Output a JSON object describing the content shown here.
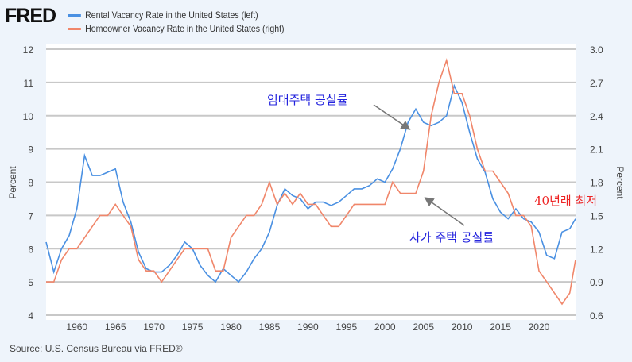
{
  "header": {
    "logo": "FRED"
  },
  "source": "Source: U.S. Census Bureau via FRED®",
  "chart_data": {
    "type": "line",
    "ylabel_left": "Percent",
    "ylabel_right": "Percent",
    "ylim_left": [
      4,
      12
    ],
    "ylim_right": [
      0.6,
      3.0
    ],
    "xlim": [
      1956,
      2024.75
    ],
    "x_ticks": [
      "1960",
      "1965",
      "1970",
      "1975",
      "1980",
      "1985",
      "1990",
      "1995",
      "2000",
      "2005",
      "2010",
      "2015",
      "2020"
    ],
    "y_ticks_left": [
      "4",
      "5",
      "6",
      "7",
      "8",
      "9",
      "10",
      "11",
      "12"
    ],
    "y_ticks_right": [
      "0.6",
      "0.9",
      "1.2",
      "1.5",
      "1.8",
      "2.1",
      "2.4",
      "2.7",
      "3.0"
    ],
    "grid": true,
    "legend": "top-left",
    "series": [
      {
        "name": "Rental Vacancy Rate in the United States (left)",
        "axis": "left",
        "color": "#4a90e2",
        "x": [
          1956,
          1957,
          1958,
          1959,
          1960,
          1961,
          1962,
          1963,
          1964,
          1965,
          1966,
          1967,
          1968,
          1969,
          1970,
          1971,
          1972,
          1973,
          1974,
          1975,
          1976,
          1977,
          1978,
          1979,
          1980,
          1981,
          1982,
          1983,
          1984,
          1985,
          1986,
          1987,
          1988,
          1989,
          1990,
          1991,
          1992,
          1993,
          1994,
          1995,
          1996,
          1997,
          1998,
          1999,
          2000,
          2001,
          2002,
          2003,
          2004,
          2005,
          2006,
          2007,
          2008,
          2009,
          2010,
          2011,
          2012,
          2013,
          2014,
          2015,
          2016,
          2017,
          2018,
          2019,
          2020,
          2021,
          2022,
          2023,
          2024,
          2024.75
        ],
        "values": [
          6.2,
          5.3,
          6.0,
          6.4,
          7.2,
          8.8,
          8.2,
          8.2,
          8.3,
          8.4,
          7.4,
          6.8,
          5.9,
          5.4,
          5.3,
          5.3,
          5.5,
          5.8,
          6.2,
          6.0,
          5.5,
          5.2,
          5.0,
          5.4,
          5.2,
          5.0,
          5.3,
          5.7,
          6.0,
          6.5,
          7.3,
          7.8,
          7.6,
          7.5,
          7.2,
          7.4,
          7.4,
          7.3,
          7.4,
          7.6,
          7.8,
          7.8,
          7.9,
          8.1,
          8.0,
          8.4,
          9.0,
          9.8,
          10.2,
          9.8,
          9.7,
          9.8,
          10.0,
          10.9,
          10.4,
          9.5,
          8.7,
          8.3,
          7.5,
          7.1,
          6.9,
          7.2,
          6.9,
          6.8,
          6.5,
          5.8,
          5.7,
          6.5,
          6.6,
          6.9
        ]
      },
      {
        "name": "Homeowner Vacancy Rate in the United States (right)",
        "axis": "right",
        "color": "#f0866a",
        "x": [
          1956,
          1957,
          1958,
          1959,
          1960,
          1961,
          1962,
          1963,
          1964,
          1965,
          1966,
          1967,
          1968,
          1969,
          1970,
          1971,
          1972,
          1973,
          1974,
          1975,
          1976,
          1977,
          1978,
          1979,
          1980,
          1981,
          1982,
          1983,
          1984,
          1985,
          1986,
          1987,
          1988,
          1989,
          1990,
          1991,
          1992,
          1993,
          1994,
          1995,
          1996,
          1997,
          1998,
          1999,
          2000,
          2001,
          2002,
          2003,
          2004,
          2005,
          2006,
          2007,
          2008,
          2009,
          2010,
          2011,
          2012,
          2013,
          2014,
          2015,
          2016,
          2017,
          2018,
          2019,
          2020,
          2021,
          2022,
          2023,
          2024,
          2024.75
        ],
        "values": [
          0.9,
          0.9,
          1.1,
          1.2,
          1.2,
          1.3,
          1.4,
          1.5,
          1.5,
          1.6,
          1.5,
          1.4,
          1.1,
          1.0,
          1.0,
          0.9,
          1.0,
          1.1,
          1.2,
          1.2,
          1.2,
          1.2,
          1.0,
          1.0,
          1.3,
          1.4,
          1.5,
          1.5,
          1.6,
          1.8,
          1.6,
          1.7,
          1.6,
          1.7,
          1.6,
          1.6,
          1.5,
          1.4,
          1.4,
          1.5,
          1.6,
          1.6,
          1.6,
          1.6,
          1.6,
          1.8,
          1.7,
          1.7,
          1.7,
          1.9,
          2.4,
          2.7,
          2.9,
          2.6,
          2.6,
          2.4,
          2.1,
          1.9,
          1.9,
          1.8,
          1.7,
          1.5,
          1.5,
          1.4,
          1.0,
          0.9,
          0.8,
          0.7,
          0.8,
          1.1
        ]
      }
    ],
    "annotations": [
      {
        "text": "임대주택 공실률",
        "color": "#2222dd"
      },
      {
        "text": "자가 주택 공실률",
        "color": "#2222dd"
      },
      {
        "text": "40년래 최저",
        "color": "#ee2222"
      }
    ]
  }
}
